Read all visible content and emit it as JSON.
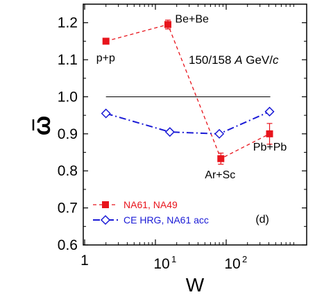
{
  "chart_data": {
    "type": "line",
    "xlabel": "W",
    "ylabel": "ω",
    "xscale": "log",
    "xlim": [
      1,
      600
    ],
    "ylim": [
      0.6,
      1.25
    ],
    "x_tick_labels": [
      "1",
      "10",
      "10",
      "2"
    ],
    "y_tick_labels": [
      "0.6",
      "0.7",
      "0.8",
      "0.9",
      "1.0",
      "1.1",
      "1.2"
    ],
    "reference_line": {
      "y": 1.0,
      "x_range": [
        2,
        420
      ]
    },
    "series": [
      {
        "name": "NA61, NA49",
        "color": "#e8141c",
        "marker": "filled-square",
        "line": "dashed",
        "points": [
          {
            "x": 2,
            "y": 1.15,
            "err": 0.0
          },
          {
            "x": 15,
            "y": 1.195,
            "err": 0.012
          },
          {
            "x": 84,
            "y": 0.833,
            "err": 0.015
          },
          {
            "x": 410,
            "y": 0.9,
            "err": 0.028
          }
        ]
      },
      {
        "name": "CE HRG, NA61 acc",
        "color": "#1a1ad6",
        "marker": "open-diamond",
        "line": "dash-dot",
        "points": [
          {
            "x": 2,
            "y": 0.955
          },
          {
            "x": 16,
            "y": 0.905
          },
          {
            "x": 80,
            "y": 0.9
          },
          {
            "x": 410,
            "y": 0.96
          }
        ]
      }
    ],
    "annotations": [
      {
        "text": "p+p",
        "x": 2,
        "y": 1.095
      },
      {
        "text": "Be+Be",
        "x": 19,
        "y": 1.2
      },
      {
        "text": "Ar+Sc",
        "x": 50,
        "y": 0.78
      },
      {
        "text": "Pb+Pb",
        "x": 240,
        "y": 0.855
      },
      {
        "text": "(d)",
        "x": 260,
        "y": 0.66
      }
    ],
    "energy_label": {
      "text_before": "150/158 ",
      "italic": "A",
      "text_mid": " GeV/",
      "italic_end": "c"
    },
    "legend": {
      "position": "bottom-left"
    }
  }
}
